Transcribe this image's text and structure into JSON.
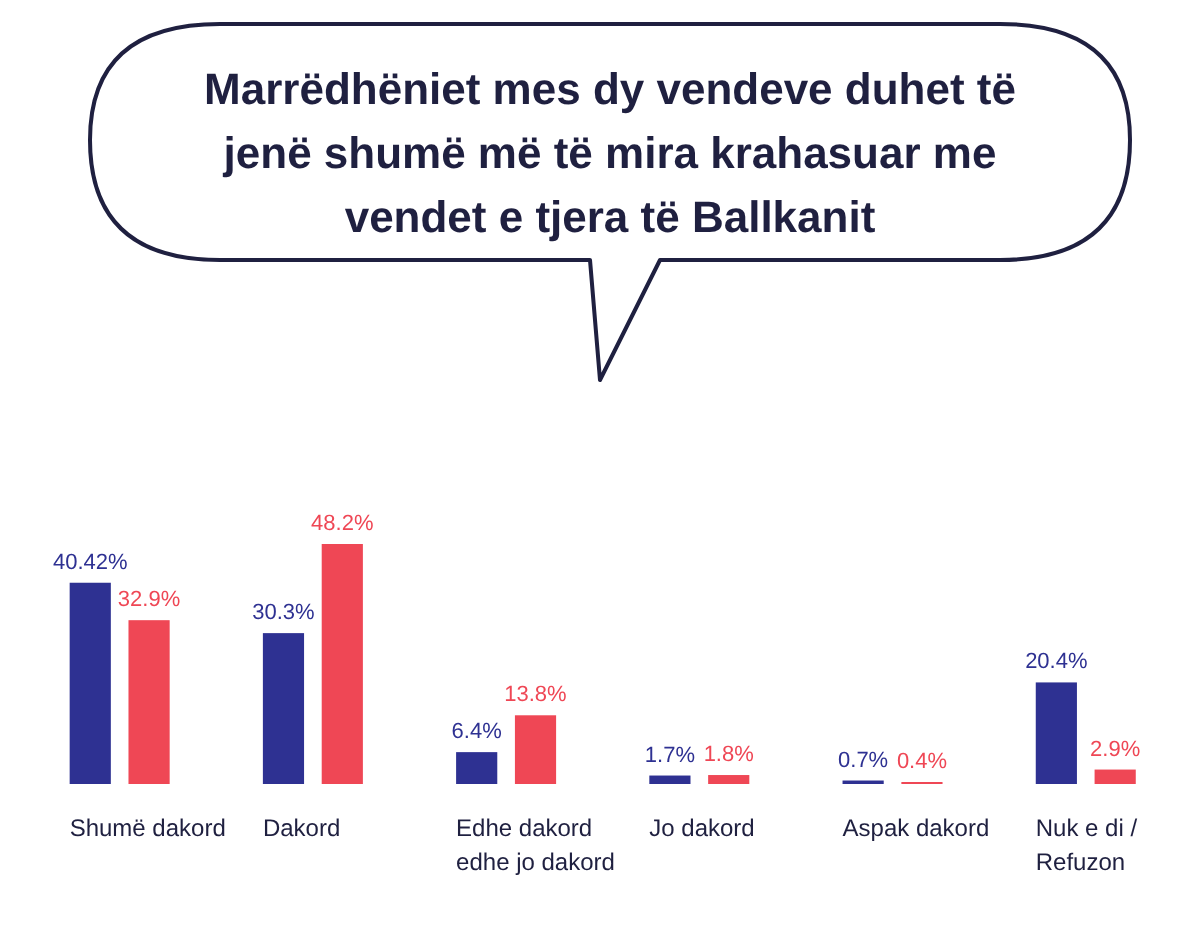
{
  "chart_data": {
    "type": "bar",
    "title": "Marrëdhëniet mes dy vendeve duhet të jenë shumë më të mira krahasuar me vendet e tjera të Ballkanit",
    "categories": [
      "Shumë dakord",
      "Dakord",
      "Edhe dakord edhe jo dakord",
      "Jo dakord",
      "Aspak dakord",
      "Nuk e di / Refuzon"
    ],
    "series": [
      {
        "color": "#2e3192",
        "values": [
          40.42,
          30.3,
          6.4,
          1.7,
          0.7,
          20.4
        ],
        "value_labels": [
          "40.42%",
          "30.3%",
          "6.4%",
          "1.7%",
          "0.7%",
          "20.4%"
        ]
      },
      {
        "color": "#ef4755",
        "values": [
          32.9,
          48.2,
          13.8,
          1.8,
          0.4,
          2.9
        ],
        "value_labels": [
          "32.9%",
          "48.2%",
          "13.8%",
          "1.8%",
          "0.4%",
          "2.9%"
        ]
      }
    ],
    "tick_labels": "x"
  }
}
